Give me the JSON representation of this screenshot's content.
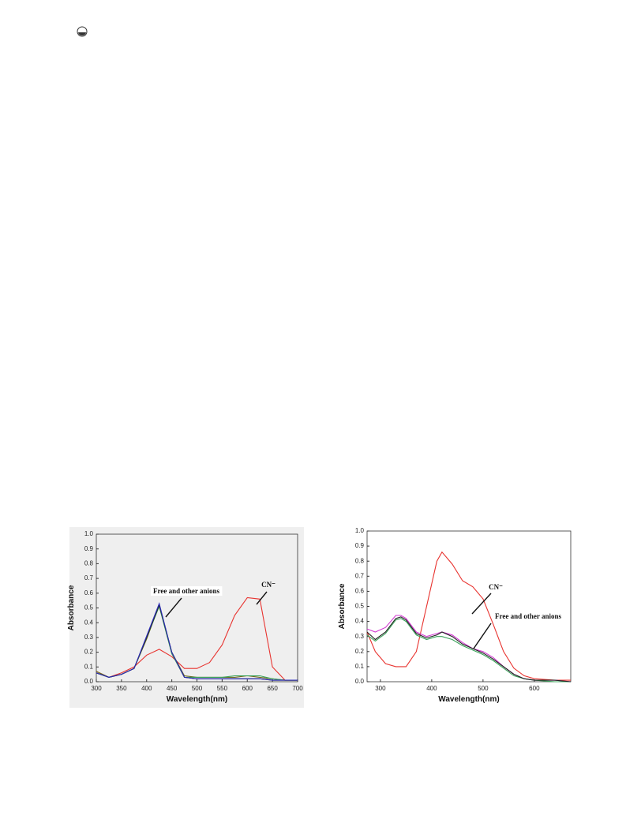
{
  "chart_data": [
    {
      "type": "line",
      "x": [
        300,
        325,
        350,
        375,
        400,
        425,
        450,
        475,
        500,
        525,
        550,
        575,
        600,
        625,
        650,
        675,
        700
      ],
      "series": [
        {
          "color": "#e8332f",
          "values": [
            0.07,
            0.03,
            0.06,
            0.1,
            0.18,
            0.22,
            0.17,
            0.09,
            0.09,
            0.13,
            0.25,
            0.45,
            0.57,
            0.56,
            0.1,
            0.01,
            0.01
          ]
        },
        {
          "color": "#6b6b1e",
          "values": [
            0.07,
            0.03,
            0.05,
            0.09,
            0.29,
            0.52,
            0.2,
            0.04,
            0.03,
            0.03,
            0.03,
            0.03,
            0.04,
            0.03,
            0.02,
            0.01,
            0.01
          ]
        },
        {
          "color": "#3aa35a",
          "values": [
            0.06,
            0.03,
            0.05,
            0.09,
            0.3,
            0.51,
            0.19,
            0.03,
            0.03,
            0.03,
            0.03,
            0.04,
            0.04,
            0.04,
            0.02,
            0.01,
            0.01
          ]
        },
        {
          "color": "#222222",
          "values": [
            0.06,
            0.03,
            0.05,
            0.09,
            0.3,
            0.52,
            0.2,
            0.03,
            0.02,
            0.02,
            0.02,
            0.02,
            0.02,
            0.02,
            0.01,
            0.01,
            0.01
          ]
        },
        {
          "color": "#2b2bb8",
          "values": [
            0.06,
            0.03,
            0.05,
            0.09,
            0.31,
            0.53,
            0.2,
            0.03,
            0.02,
            0.02,
            0.02,
            0.02,
            0.02,
            0.02,
            0.01,
            0.01,
            0.01
          ]
        }
      ],
      "xlim": [
        300,
        700
      ],
      "xticks": [
        300,
        350,
        400,
        450,
        500,
        550,
        600,
        650,
        700
      ],
      "ylim": [
        0,
        1
      ],
      "yticks": [
        {
          "value": 0,
          "label": "0.0"
        },
        0.1,
        0.2,
        0.3,
        0.4,
        0.5,
        0.6,
        0.7,
        0.8,
        0.9,
        {
          "value": 1,
          "label": "1.0"
        }
      ],
      "x_label": "Wavelength(nm)",
      "y_label": "Absorbance",
      "annotations": [
        "Free and other anions",
        "CN⁻"
      ],
      "grid": false
    },
    {
      "type": "line",
      "x": [
        274,
        290,
        310,
        330,
        340,
        350,
        370,
        390,
        410,
        420,
        440,
        460,
        480,
        500,
        520,
        540,
        560,
        580,
        600,
        640,
        671
      ],
      "series": [
        {
          "color": "#e8332f",
          "values": [
            0.33,
            0.2,
            0.12,
            0.1,
            0.1,
            0.1,
            0.2,
            0.5,
            0.8,
            0.86,
            0.78,
            0.67,
            0.63,
            0.55,
            0.38,
            0.2,
            0.09,
            0.04,
            0.02,
            0.01,
            0.01
          ]
        },
        {
          "color": "#d23ad2",
          "values": [
            0.35,
            0.33,
            0.36,
            0.44,
            0.44,
            0.42,
            0.33,
            0.3,
            0.32,
            0.33,
            0.31,
            0.26,
            0.22,
            0.2,
            0.16,
            0.1,
            0.05,
            0.02,
            0.01,
            0.01,
            0
          ]
        },
        {
          "color": "#3aa35a",
          "values": [
            0.31,
            0.27,
            0.32,
            0.41,
            0.42,
            0.4,
            0.31,
            0.28,
            0.3,
            0.3,
            0.28,
            0.24,
            0.21,
            0.18,
            0.14,
            0.09,
            0.04,
            0.02,
            0.01,
            0,
            0
          ]
        },
        {
          "color": "#222222",
          "values": [
            0.33,
            0.28,
            0.33,
            0.42,
            0.43,
            0.41,
            0.32,
            0.29,
            0.31,
            0.33,
            0.3,
            0.25,
            0.22,
            0.19,
            0.15,
            0.1,
            0.05,
            0.02,
            0.01,
            0.01,
            0
          ]
        }
      ],
      "xlim": [
        274,
        671
      ],
      "xticks": [
        300,
        400,
        500,
        600
      ],
      "ylim": [
        0,
        1
      ],
      "yticks": [
        {
          "value": 0,
          "label": "0.0"
        },
        0.1,
        0.2,
        0.3,
        0.4,
        0.5,
        0.6,
        0.7,
        0.8,
        0.9,
        {
          "value": 1,
          "label": "1.0"
        }
      ],
      "x_label": "Wavelength(nm)",
      "y_label": "Absorbance",
      "annotations": [
        "CN⁻",
        "Free and other anions"
      ],
      "grid": false
    }
  ]
}
